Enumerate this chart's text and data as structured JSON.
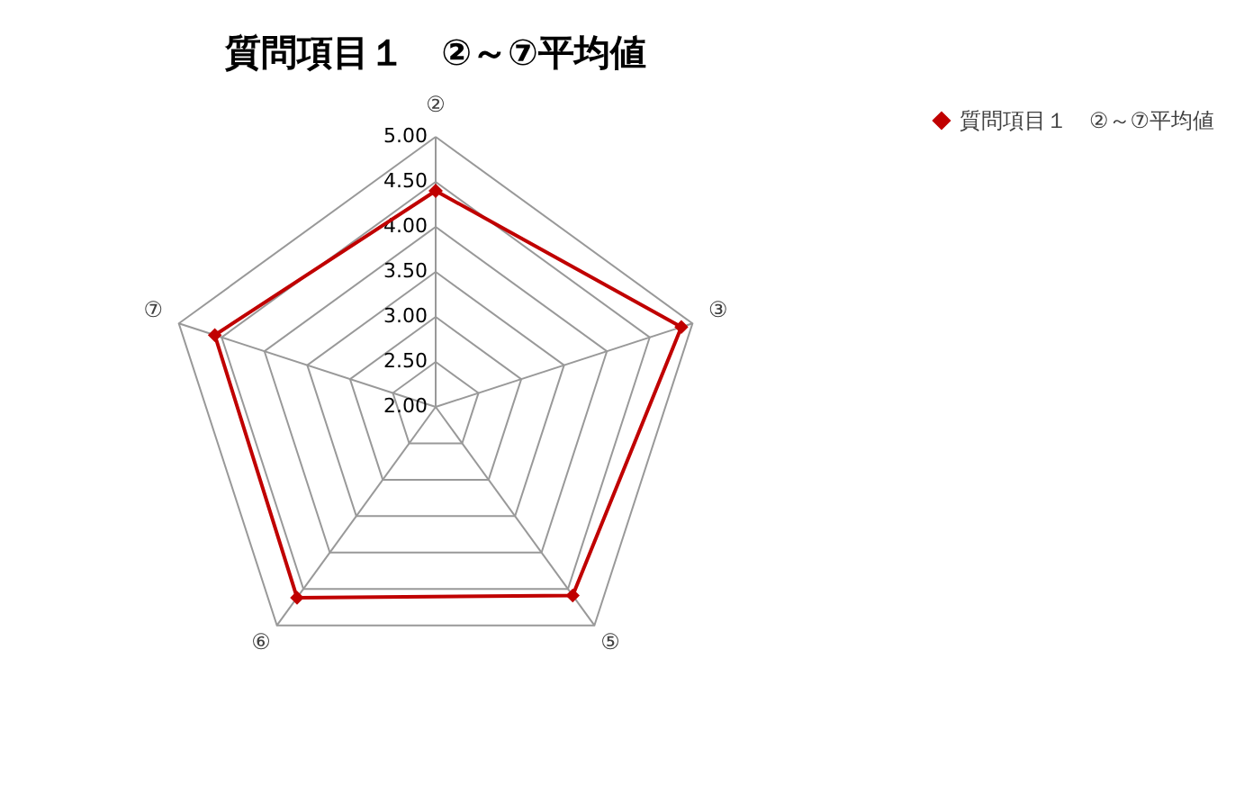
{
  "chart_data": {
    "type": "radar",
    "title": "質問項目１　②～⑦平均値",
    "categories": [
      "②",
      "③",
      "⑤",
      "⑥",
      "⑦"
    ],
    "series": [
      {
        "name": "質問項目１　②～⑦平均値",
        "color": "#c00000",
        "values": [
          4.4,
          4.87,
          4.59,
          4.62,
          4.58
        ]
      }
    ],
    "ylim": [
      2,
      5
    ],
    "yticks": [
      {
        "value": 2,
        "label": "2.00"
      },
      {
        "value": 2.5,
        "label": "2.50"
      },
      {
        "value": 3,
        "label": "3.00"
      },
      {
        "value": 3.5,
        "label": "3.50"
      },
      {
        "value": 4,
        "label": "4.00"
      },
      {
        "value": 4.5,
        "label": "4.50"
      },
      {
        "value": 5,
        "label": "5.00"
      }
    ],
    "grid": true,
    "legend": "right",
    "marker": "diamond"
  }
}
